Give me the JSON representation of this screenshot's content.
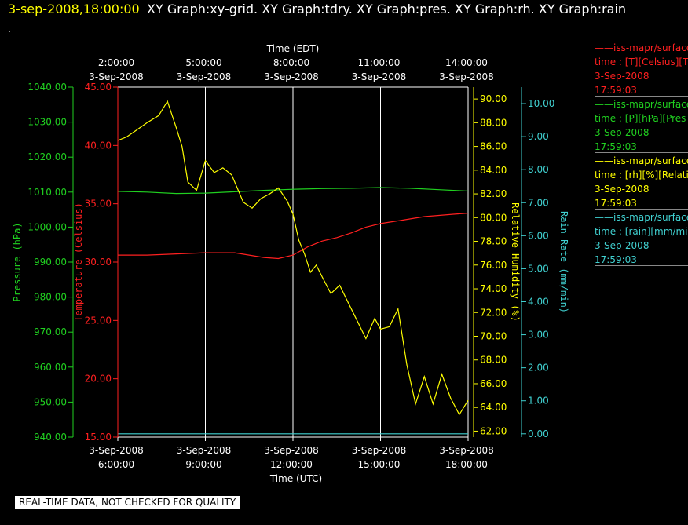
{
  "header": {
    "datetime": "3-sep-2008,18:00:00",
    "titles": "XY Graph:xy-grid.  XY Graph:tdry.  XY Graph:pres.  XY Graph:rh.  XY Graph:rain",
    "dot": "."
  },
  "footer": {
    "disclaimer": "REAL-TIME DATA, NOT CHECKED FOR QUALITY"
  },
  "legend": [
    {
      "line1": "——iss-mapr/surface",
      "line2": "time : [T][Celsius][T",
      "line3": "3-Sep-2008",
      "line4": "17:59:03",
      "color": "#ff2020"
    },
    {
      "line1": "——iss-mapr/surface",
      "line2": "time : [P][hPa][Pres",
      "line3": "3-Sep-2008",
      "line4": "17:59:03",
      "color": "#20d020"
    },
    {
      "line1": "——iss-mapr/surface",
      "line2": "time : [rh][%][Relati",
      "line3": "3-Sep-2008",
      "line4": "17:59:03",
      "color": "#ffff00"
    },
    {
      "line1": "——iss-mapr/surface",
      "line2": "time : [rain][mm/min",
      "line3": "3-Sep-2008",
      "line4": "17:59:03",
      "color": "#40d0d0"
    }
  ],
  "chart_data": {
    "type": "line",
    "x_top": {
      "label": "Time (EDT)",
      "ticks": [
        {
          "time": "2:00:00",
          "date": "3-Sep-2008"
        },
        {
          "time": "5:00:00",
          "date": "3-Sep-2008"
        },
        {
          "time": "8:00:00",
          "date": "3-Sep-2008"
        },
        {
          "time": "11:00:00",
          "date": "3-Sep-2008"
        },
        {
          "time": "14:00:00",
          "date": "3-Sep-2008"
        }
      ]
    },
    "x_bottom": {
      "label": "Time (UTC)",
      "range": [
        "2008-09-03 06:00:00",
        "2008-09-03 18:00:00"
      ],
      "ticks": [
        {
          "date": "3-Sep-2008",
          "time": "6:00:00"
        },
        {
          "date": "3-Sep-2008",
          "time": "9:00:00"
        },
        {
          "date": "3-Sep-2008",
          "time": "12:00:00"
        },
        {
          "date": "3-Sep-2008",
          "time": "15:00:00"
        },
        {
          "date": "3-Sep-2008",
          "time": "18:00:00"
        }
      ]
    },
    "grid": "vertical",
    "axes": [
      {
        "key": "pres",
        "label": "Pressure (hPa)",
        "color": "#20d020",
        "range": [
          940,
          1040
        ],
        "ticks": [
          "940.00",
          "950.00",
          "960.00",
          "970.00",
          "980.00",
          "990.00",
          "1000.00",
          "1010.00",
          "1020.00",
          "1030.00",
          "1040.00"
        ]
      },
      {
        "key": "tdry",
        "label": "Temperature (Celsius)",
        "color": "#ff2020",
        "range": [
          15,
          45
        ],
        "ticks": [
          "15.00",
          "20.00",
          "25.00",
          "30.00",
          "35.00",
          "40.00",
          "45.00"
        ]
      },
      {
        "key": "rh",
        "label": "Relative Humidity (%)",
        "color": "#ffff00",
        "range": [
          61.5,
          91
        ],
        "ticks": [
          "62.00",
          "64.00",
          "66.00",
          "68.00",
          "70.00",
          "72.00",
          "74.00",
          "76.00",
          "78.00",
          "80.00",
          "82.00",
          "84.00",
          "86.00",
          "88.00",
          "90.00"
        ]
      },
      {
        "key": "rain",
        "label": "Rain Rate (mm/min)",
        "color": "#40d0d0",
        "range": [
          -0.1,
          10.5
        ],
        "ticks": [
          "0.00",
          "1.00",
          "2.00",
          "3.00",
          "4.00",
          "5.00",
          "6.00",
          "7.00",
          "8.00",
          "9.00",
          "10.00"
        ]
      }
    ],
    "series": [
      {
        "axis": "tdry",
        "color": "#ff2020",
        "x": [
          6.0,
          7.0,
          8.0,
          9.0,
          10.0,
          11.0,
          11.5,
          12.0,
          12.5,
          13.0,
          13.5,
          14.0,
          14.5,
          15.0,
          15.5,
          16.0,
          16.5,
          17.0,
          17.5,
          18.0
        ],
        "y": [
          30.6,
          30.6,
          30.7,
          30.8,
          30.8,
          30.4,
          30.3,
          30.6,
          31.3,
          31.8,
          32.1,
          32.5,
          33.0,
          33.3,
          33.5,
          33.7,
          33.9,
          34.0,
          34.1,
          34.2
        ]
      },
      {
        "axis": "pres",
        "color": "#20d020",
        "x": [
          6.0,
          7.0,
          8.0,
          9.0,
          10.0,
          11.0,
          12.0,
          13.0,
          14.0,
          15.0,
          16.0,
          17.0,
          18.0
        ],
        "y": [
          1010.2,
          1010.0,
          1009.6,
          1009.7,
          1010.1,
          1010.5,
          1010.8,
          1011.0,
          1011.1,
          1011.3,
          1011.1,
          1010.7,
          1010.3
        ]
      },
      {
        "axis": "rh",
        "color": "#ffff00",
        "x": [
          6.0,
          6.3,
          6.6,
          7.0,
          7.4,
          7.7,
          8.0,
          8.2,
          8.4,
          8.7,
          9.0,
          9.3,
          9.6,
          9.9,
          10.3,
          10.6,
          10.9,
          11.2,
          11.5,
          11.8,
          12.0,
          12.2,
          12.4,
          12.6,
          12.8,
          13.0,
          13.3,
          13.6,
          13.9,
          14.2,
          14.5,
          14.8,
          15.0,
          15.3,
          15.6,
          15.9,
          16.2,
          16.5,
          16.8,
          17.1,
          17.4,
          17.7,
          18.0
        ],
        "y": [
          86.5,
          86.8,
          87.3,
          88.0,
          88.6,
          89.8,
          87.6,
          86.0,
          83.0,
          82.3,
          84.8,
          83.8,
          84.2,
          83.6,
          81.3,
          80.8,
          81.6,
          82.0,
          82.5,
          81.4,
          80.3,
          78.1,
          76.9,
          75.4,
          76.0,
          75.0,
          73.6,
          74.3,
          72.8,
          71.3,
          69.8,
          71.5,
          70.6,
          70.8,
          72.3,
          67.6,
          64.3,
          66.6,
          64.3,
          66.8,
          64.8,
          63.4,
          64.6
        ]
      },
      {
        "axis": "rain",
        "color": "#40d0d0",
        "x": [
          6.0,
          18.0
        ],
        "y": [
          0.0,
          0.0
        ]
      }
    ]
  }
}
